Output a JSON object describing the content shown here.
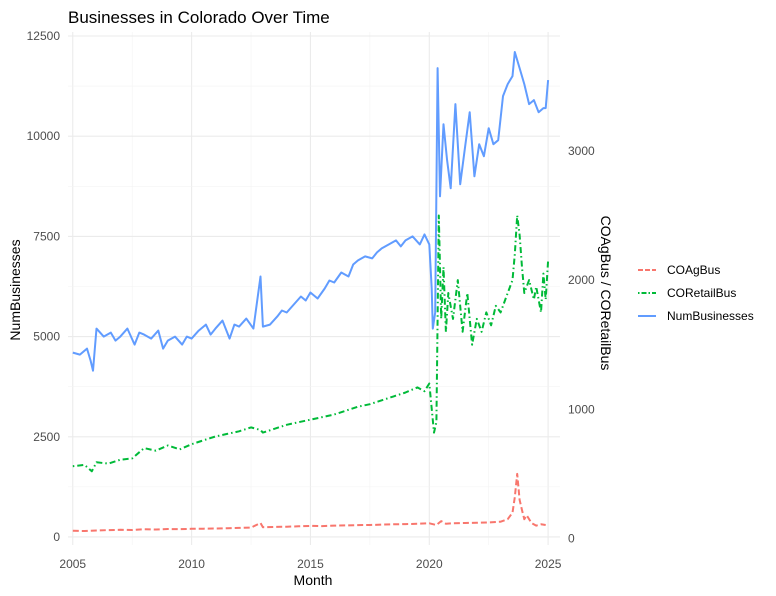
{
  "chart_data": {
    "type": "line",
    "title": "Businesses in Colorado Over Time",
    "xlabel": "Month",
    "ylabel": "NumBusinesses",
    "ylabel_right": "COAgBus / CORetailBus",
    "xlim": [
      2004.8,
      2025.5
    ],
    "ylim": [
      -200,
      12600
    ],
    "ylim_right": [
      -50,
      3920
    ],
    "x_ticks": [
      2005,
      2010,
      2015,
      2020,
      2025
    ],
    "y_ticks_left": [
      0,
      2500,
      5000,
      7500,
      10000,
      12500
    ],
    "y_ticks_right": [
      0,
      1000,
      2000,
      3000
    ],
    "grid": true,
    "legend_position": "right",
    "series": [
      {
        "name": "COAgBus",
        "axis": "right",
        "color": "#f8766d",
        "dash": "dashed",
        "x": [
          2005.0,
          2005.5,
          2006.0,
          2006.5,
          2007.0,
          2007.5,
          2008.0,
          2008.5,
          2009.0,
          2009.5,
          2010.0,
          2010.5,
          2011.0,
          2011.5,
          2012.0,
          2012.5,
          2012.9,
          2013.0,
          2013.5,
          2014.0,
          2014.5,
          2015.0,
          2015.5,
          2016.0,
          2016.5,
          2017.0,
          2017.5,
          2018.0,
          2018.5,
          2019.0,
          2019.5,
          2020.0,
          2020.3,
          2020.5,
          2020.7,
          2021.0,
          2021.5,
          2022.0,
          2022.5,
          2023.0,
          2023.3,
          2023.5,
          2023.6,
          2023.7,
          2023.8,
          2023.9,
          2024.0,
          2024.1,
          2024.3,
          2024.5,
          2024.7,
          2024.9
        ],
        "values": [
          60,
          58,
          62,
          65,
          68,
          66,
          72,
          70,
          74,
          72,
          75,
          76,
          78,
          80,
          82,
          85,
          120,
          88,
          90,
          92,
          95,
          98,
          96,
          100,
          102,
          104,
          105,
          108,
          110,
          112,
          114,
          118,
          105,
          135,
          115,
          118,
          120,
          122,
          125,
          130,
          150,
          200,
          320,
          500,
          300,
          220,
          150,
          180,
          120,
          100,
          110,
          105
        ]
      },
      {
        "name": "CORetailBus",
        "axis": "right",
        "color": "#00ba38",
        "dash": "dotdash",
        "x": [
          2005.0,
          2005.5,
          2005.8,
          2006.0,
          2006.5,
          2007.0,
          2007.5,
          2008.0,
          2008.5,
          2009.0,
          2009.5,
          2010.0,
          2010.5,
          2011.0,
          2011.5,
          2012.0,
          2012.5,
          2012.9,
          2013.0,
          2013.5,
          2014.0,
          2014.5,
          2015.0,
          2015.5,
          2016.0,
          2016.5,
          2017.0,
          2017.5,
          2018.0,
          2018.5,
          2019.0,
          2019.5,
          2019.8,
          2020.0,
          2020.2,
          2020.3,
          2020.4,
          2020.5,
          2020.6,
          2020.7,
          2020.8,
          2021.0,
          2021.2,
          2021.4,
          2021.6,
          2021.8,
          2022.0,
          2022.2,
          2022.4,
          2022.6,
          2022.8,
          2023.0,
          2023.3,
          2023.5,
          2023.6,
          2023.7,
          2023.8,
          2023.9,
          2024.0,
          2024.2,
          2024.4,
          2024.5,
          2024.7,
          2024.8,
          2024.9,
          2025.0
        ],
        "values": [
          560,
          570,
          520,
          590,
          580,
          610,
          620,
          700,
          680,
          720,
          690,
          730,
          760,
          790,
          810,
          830,
          860,
          840,
          820,
          850,
          880,
          900,
          920,
          940,
          960,
          990,
          1020,
          1040,
          1070,
          1100,
          1130,
          1170,
          1140,
          1200,
          820,
          900,
          2500,
          1700,
          2100,
          1600,
          1900,
          1700,
          2000,
          1600,
          1900,
          1500,
          1700,
          1600,
          1750,
          1650,
          1800,
          1750,
          1900,
          2000,
          2200,
          2500,
          2350,
          2100,
          1900,
          2000,
          1850,
          1950,
          1750,
          2050,
          1850,
          2150
        ]
      },
      {
        "name": "NumBusinesses",
        "axis": "left",
        "color": "#619cff",
        "dash": "solid",
        "x": [
          2005.0,
          2005.3,
          2005.6,
          2005.75,
          2005.85,
          2006.0,
          2006.3,
          2006.6,
          2006.8,
          2007.0,
          2007.3,
          2007.6,
          2007.8,
          2008.0,
          2008.3,
          2008.6,
          2008.8,
          2009.0,
          2009.3,
          2009.6,
          2009.8,
          2010.0,
          2010.3,
          2010.6,
          2010.8,
          2011.0,
          2011.3,
          2011.6,
          2011.8,
          2012.0,
          2012.3,
          2012.6,
          2012.9,
          2013.0,
          2013.3,
          2013.6,
          2013.8,
          2014.0,
          2014.3,
          2014.6,
          2014.8,
          2015.0,
          2015.3,
          2015.6,
          2015.8,
          2016.0,
          2016.3,
          2016.6,
          2016.8,
          2017.0,
          2017.3,
          2017.6,
          2017.8,
          2018.0,
          2018.3,
          2018.6,
          2018.8,
          2019.0,
          2019.3,
          2019.6,
          2019.8,
          2020.0,
          2020.1,
          2020.15,
          2020.25,
          2020.35,
          2020.45,
          2020.6,
          2020.75,
          2020.9,
          2021.1,
          2021.3,
          2021.5,
          2021.7,
          2021.9,
          2022.1,
          2022.3,
          2022.5,
          2022.7,
          2022.9,
          2023.1,
          2023.3,
          2023.5,
          2023.6,
          2023.8,
          2024.0,
          2024.2,
          2024.4,
          2024.6,
          2024.8,
          2024.9,
          2025.0
        ],
        "values": [
          4600,
          4550,
          4700,
          4400,
          4150,
          5200,
          5000,
          5100,
          4900,
          5000,
          5200,
          4800,
          5100,
          5050,
          4950,
          5150,
          4700,
          4900,
          5000,
          4800,
          5000,
          4950,
          5150,
          5300,
          5050,
          5200,
          5400,
          4950,
          5300,
          5250,
          5450,
          5200,
          6500,
          5250,
          5300,
          5500,
          5650,
          5600,
          5800,
          6000,
          5900,
          6100,
          5950,
          6200,
          6400,
          6350,
          6600,
          6500,
          6800,
          6900,
          7000,
          6950,
          7100,
          7200,
          7300,
          7400,
          7250,
          7400,
          7500,
          7300,
          7550,
          7300,
          6200,
          5200,
          5600,
          11700,
          8500,
          10300,
          9400,
          8700,
          10800,
          8800,
          9700,
          10600,
          9000,
          9800,
          9500,
          10200,
          9800,
          9900,
          11000,
          11300,
          11500,
          12100,
          11700,
          11300,
          10800,
          10900,
          10600,
          10700,
          10700,
          11400
        ]
      }
    ]
  }
}
